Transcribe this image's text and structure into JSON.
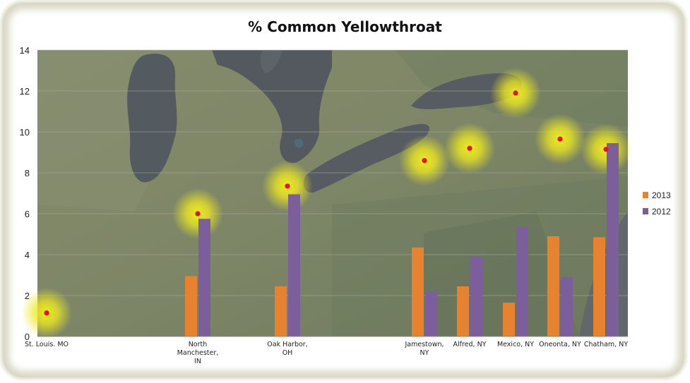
{
  "chart_data": {
    "type": "bar",
    "title": "% Common Yellowthroat",
    "xlabel": "",
    "ylabel": "",
    "ylim": [
      0,
      14
    ],
    "yticks": [
      "0",
      "2",
      "4",
      "6",
      "8",
      "10",
      "12",
      "14"
    ],
    "grid": true,
    "legend_position": "right",
    "background": "satellite map of the Great Lakes region",
    "categories": [
      [
        "St. Louis. MO"
      ],
      [
        "North",
        "Manchester,",
        "IN"
      ],
      [
        "Oak Harbor,",
        "OH"
      ],
      [
        "Jamestown,",
        "NY"
      ],
      [
        "Alfred, NY"
      ],
      [
        "Mexico, NY"
      ],
      [
        "Oneonta, NY"
      ],
      [
        "Chatham, NY"
      ]
    ],
    "series": [
      {
        "name": "2013",
        "color": "#e8822e",
        "values": [
          0,
          2.95,
          2.45,
          4.35,
          2.45,
          1.65,
          4.9,
          4.85
        ]
      },
      {
        "name": "2012",
        "color": "#7c5e9c",
        "values": [
          0,
          5.75,
          6.95,
          2.2,
          3.9,
          5.35,
          2.9,
          9.45
        ]
      }
    ],
    "markers": [
      {
        "category": "St. Louis. MO",
        "value": 1.15
      },
      {
        "category": "North Manchester, IN",
        "value": 6.0
      },
      {
        "category": "Oak Harbor, OH",
        "value": 7.35
      },
      {
        "category": "Jamestown, NY",
        "value": 8.6
      },
      {
        "category": "Alfred, NY",
        "value": 9.2
      },
      {
        "category": "Mexico, NY",
        "value": 11.9
      },
      {
        "category": "Oneonta, NY",
        "value": 9.65
      },
      {
        "category": "Chatham, NY",
        "value": 9.15
      }
    ],
    "marker_color": "#e8121b",
    "glow_color": "#f3f01e"
  }
}
